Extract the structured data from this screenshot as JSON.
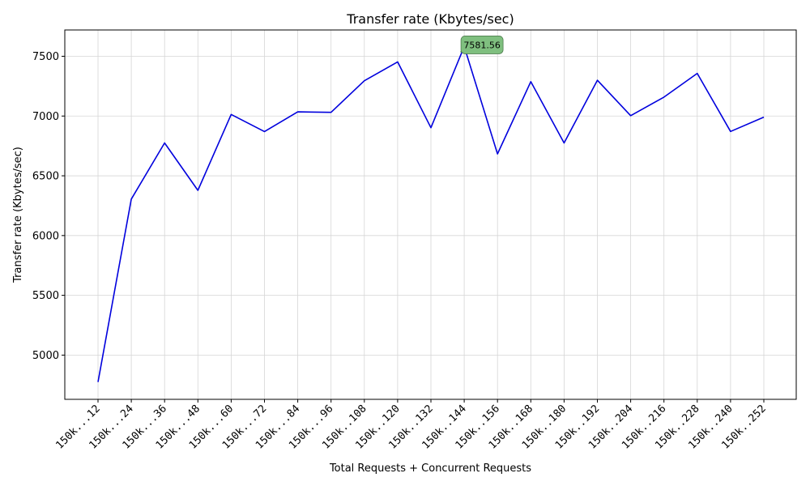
{
  "chart_data": {
    "type": "line",
    "title": "Transfer rate (Kbytes/sec)",
    "xlabel": "Total Requests + Concurrent Requests",
    "ylabel": "Transfer rate (Kbytes/sec)",
    "categories": [
      "150k...12",
      "150k...24",
      "150k...36",
      "150k...48",
      "150k...60",
      "150k...72",
      "150k...84",
      "150k...96",
      "150k..108",
      "150k..120",
      "150k..132",
      "150k..144",
      "150k..156",
      "150k..168",
      "150k..180",
      "150k..192",
      "150k..204",
      "150k..216",
      "150k..228",
      "150k..240",
      "150k..252"
    ],
    "series": [
      {
        "color": "#0000dd",
        "values": [
          4775,
          6305,
          6775,
          6378,
          7013,
          6870,
          7035,
          7031,
          7295,
          7453,
          6902,
          7581.56,
          6683,
          7288,
          6775,
          7299,
          7003,
          7158,
          7357,
          6871,
          6991
        ]
      }
    ],
    "ylim": [
      4630,
      7720
    ],
    "yticks": [
      5000,
      5500,
      6000,
      6500,
      7000,
      7500
    ],
    "grid": true,
    "annotation": {
      "text": "7581.56",
      "index": 11,
      "box_color": "#7fbf7f",
      "marker_color": "#228b22"
    }
  }
}
